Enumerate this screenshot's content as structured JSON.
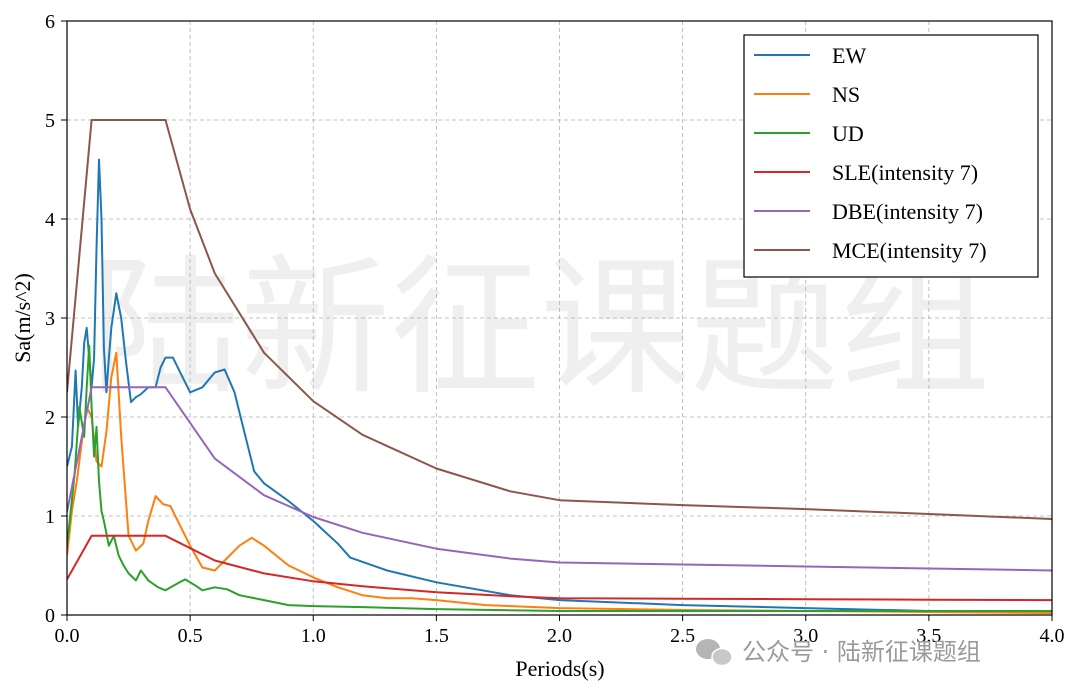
{
  "watermark": {
    "center_text": "陆新征课题组",
    "footer_text": "公众号 · 陆新征课题组"
  },
  "chart_data": {
    "type": "line",
    "title": "",
    "xlabel": "Periods(s)",
    "ylabel": "Sa(m/s^2)",
    "xlim": [
      0,
      4.0
    ],
    "ylim": [
      0,
      6
    ],
    "xticks": [
      "0.0",
      "0.5",
      "1.0",
      "1.5",
      "2.0",
      "2.5",
      "3.0",
      "3.5",
      "4.0"
    ],
    "yticks": [
      "0",
      "1",
      "2",
      "3",
      "4",
      "5",
      "6"
    ],
    "grid": true,
    "legend_position": "top-right",
    "series": [
      {
        "name": "EW",
        "color": "#1f77b4",
        "x": [
          0,
          0.02,
          0.035,
          0.045,
          0.06,
          0.07,
          0.08,
          0.09,
          0.1,
          0.11,
          0.12,
          0.13,
          0.14,
          0.15,
          0.16,
          0.17,
          0.18,
          0.2,
          0.22,
          0.24,
          0.26,
          0.28,
          0.3,
          0.33,
          0.36,
          0.38,
          0.4,
          0.43,
          0.47,
          0.5,
          0.55,
          0.6,
          0.64,
          0.68,
          0.72,
          0.76,
          0.8,
          0.9,
          1.0,
          1.1,
          1.15,
          1.3,
          1.5,
          1.8,
          2.0,
          2.5,
          3.0,
          3.5,
          4.0
        ],
        "y": [
          1.5,
          1.7,
          2.47,
          1.9,
          2.3,
          2.75,
          2.9,
          2.6,
          2.3,
          2.6,
          3.7,
          4.6,
          4.0,
          2.7,
          2.25,
          2.6,
          2.9,
          3.25,
          3.0,
          2.55,
          2.15,
          2.2,
          2.23,
          2.3,
          2.3,
          2.5,
          2.6,
          2.6,
          2.4,
          2.25,
          2.3,
          2.45,
          2.48,
          2.25,
          1.85,
          1.45,
          1.33,
          1.15,
          0.95,
          0.72,
          0.58,
          0.45,
          0.33,
          0.2,
          0.15,
          0.1,
          0.07,
          0.04,
          0.03
        ]
      },
      {
        "name": "NS",
        "color": "#ff7f0e",
        "x": [
          0,
          0.02,
          0.04,
          0.06,
          0.08,
          0.1,
          0.12,
          0.14,
          0.16,
          0.18,
          0.2,
          0.22,
          0.25,
          0.28,
          0.31,
          0.33,
          0.36,
          0.39,
          0.42,
          0.45,
          0.5,
          0.55,
          0.6,
          0.7,
          0.75,
          0.8,
          0.9,
          1.0,
          1.1,
          1.2,
          1.3,
          1.4,
          1.5,
          1.7,
          2.0,
          2.5,
          3.0,
          3.5,
          4.0
        ],
        "y": [
          0.6,
          1.05,
          1.35,
          1.75,
          2.1,
          2.0,
          1.55,
          1.5,
          1.85,
          2.4,
          2.65,
          1.8,
          0.8,
          0.65,
          0.72,
          0.95,
          1.2,
          1.12,
          1.1,
          0.95,
          0.7,
          0.48,
          0.45,
          0.7,
          0.78,
          0.7,
          0.5,
          0.38,
          0.28,
          0.2,
          0.17,
          0.17,
          0.15,
          0.1,
          0.07,
          0.05,
          0.04,
          0.03,
          0.02
        ]
      },
      {
        "name": "UD",
        "color": "#2ca02c",
        "x": [
          0,
          0.03,
          0.05,
          0.07,
          0.08,
          0.09,
          0.1,
          0.11,
          0.12,
          0.13,
          0.14,
          0.15,
          0.17,
          0.19,
          0.21,
          0.23,
          0.25,
          0.28,
          0.3,
          0.33,
          0.37,
          0.4,
          0.45,
          0.48,
          0.52,
          0.55,
          0.6,
          0.65,
          0.7,
          0.8,
          0.9,
          1.0,
          1.2,
          1.5,
          2.0,
          2.5,
          3.0,
          3.5,
          4.0
        ],
        "y": [
          0.7,
          1.4,
          2.1,
          1.8,
          2.3,
          2.72,
          2.1,
          1.6,
          1.9,
          1.35,
          1.05,
          0.95,
          0.7,
          0.8,
          0.6,
          0.5,
          0.42,
          0.35,
          0.45,
          0.35,
          0.28,
          0.25,
          0.32,
          0.36,
          0.3,
          0.25,
          0.28,
          0.26,
          0.2,
          0.15,
          0.1,
          0.09,
          0.08,
          0.06,
          0.04,
          0.04,
          0.04,
          0.04,
          0.04
        ]
      },
      {
        "name": "SLE(intensity 7)",
        "color": "#d62728",
        "x": [
          0,
          0.1,
          0.4,
          0.6,
          0.8,
          1.0,
          1.2,
          1.5,
          1.8,
          2.0,
          2.5,
          3.0,
          3.5,
          4.0
        ],
        "y": [
          0.36,
          0.8,
          0.8,
          0.55,
          0.42,
          0.34,
          0.29,
          0.23,
          0.19,
          0.17,
          0.165,
          0.16,
          0.155,
          0.15
        ]
      },
      {
        "name": "DBE(intensity 7)",
        "color": "#9467bd",
        "x": [
          0,
          0.1,
          0.4,
          0.6,
          0.8,
          1.0,
          1.2,
          1.5,
          1.8,
          2.0,
          2.5,
          3.0,
          3.5,
          4.0
        ],
        "y": [
          1.04,
          2.3,
          2.3,
          1.58,
          1.21,
          0.99,
          0.83,
          0.67,
          0.57,
          0.53,
          0.51,
          0.49,
          0.47,
          0.45
        ]
      },
      {
        "name": "MCE(intensity 7)",
        "color": "#8c564b",
        "x": [
          0,
          0.1,
          0.4,
          0.5,
          0.6,
          0.8,
          1.0,
          1.2,
          1.5,
          1.8,
          2.0,
          2.5,
          3.0,
          3.5,
          4.0
        ],
        "y": [
          2.25,
          5.0,
          5.0,
          4.1,
          3.45,
          2.65,
          2.16,
          1.82,
          1.48,
          1.25,
          1.16,
          1.11,
          1.07,
          1.02,
          0.97
        ]
      }
    ]
  }
}
